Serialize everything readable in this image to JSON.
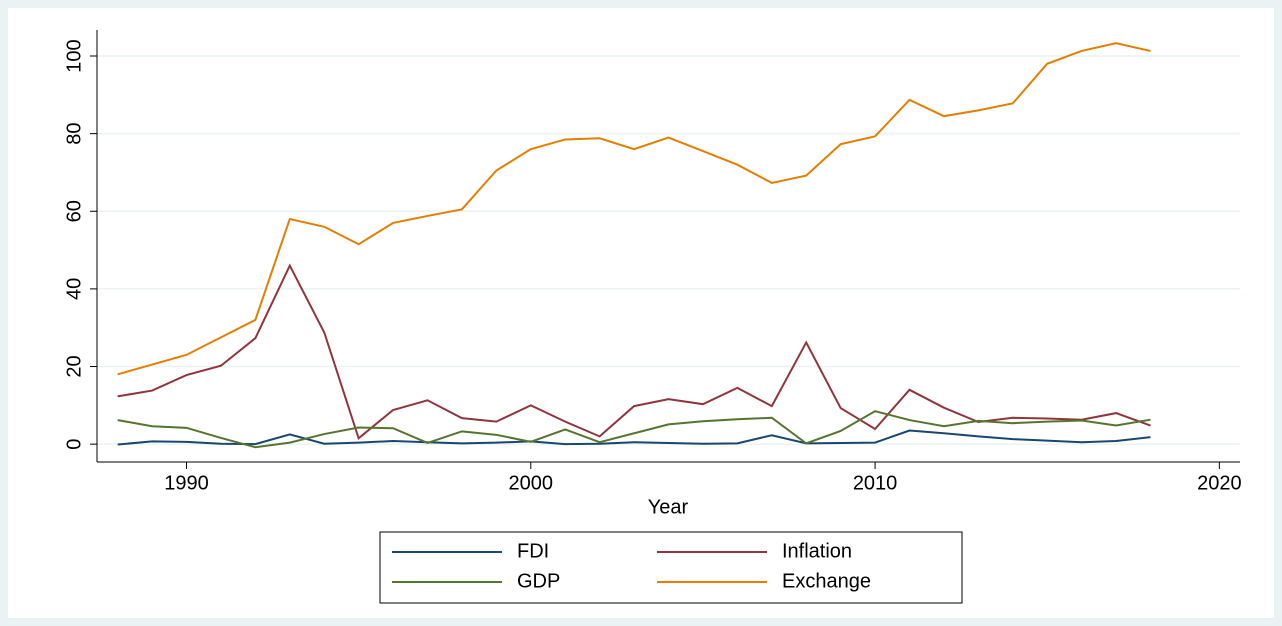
{
  "chart_data": {
    "type": "line",
    "xlabel": "Year",
    "x": [
      1988,
      1989,
      1990,
      1991,
      1992,
      1993,
      1994,
      1995,
      1996,
      1997,
      1998,
      1999,
      2000,
      2001,
      2002,
      2003,
      2004,
      2005,
      2006,
      2007,
      2008,
      2009,
      2010,
      2011,
      2012,
      2013,
      2014,
      2015,
      2016,
      2017,
      2018
    ],
    "series": [
      {
        "name": "FDI",
        "color": "#1a476f",
        "values": [
          -0.1,
          0.7,
          0.6,
          0.1,
          0,
          2.5,
          0.1,
          0.4,
          0.8,
          0.5,
          0.2,
          0.4,
          0.7,
          0,
          0.1,
          0.5,
          0.3,
          0.1,
          0.2,
          2.3,
          0.2,
          0.3,
          0.4,
          3.5,
          2.8,
          2,
          1.3,
          0.9,
          0.5,
          0.8,
          1.8
        ]
      },
      {
        "name": "Inflation",
        "color": "#90353b",
        "values": [
          12.3,
          13.8,
          17.8,
          20.2,
          27.3,
          46,
          28.8,
          1.5,
          8.8,
          11.3,
          6.7,
          5.8,
          10,
          5.8,
          2,
          9.8,
          11.6,
          10.3,
          14.5,
          9.8,
          26.2,
          9.3,
          3.9,
          14,
          9.4,
          5.7,
          6.8,
          6.6,
          6.3,
          8,
          4.8
        ]
      },
      {
        "name": "GDP",
        "color": "#55752f",
        "values": [
          6.2,
          4.6,
          4.2,
          1.6,
          -0.8,
          0.4,
          2.6,
          4.3,
          4.1,
          0.3,
          3.3,
          2.4,
          0.6,
          3.8,
          0.5,
          2.8,
          5.1,
          5.9,
          6.4,
          6.8,
          0.2,
          3.4,
          8.5,
          6.2,
          4.6,
          6,
          5.4,
          5.8,
          6.1,
          4.8,
          6.3
        ]
      },
      {
        "name": "Exchange",
        "color": "#e37e00",
        "values": [
          18,
          20.5,
          23,
          27.5,
          32,
          58,
          56,
          51.5,
          57,
          58.8,
          60.5,
          70.5,
          76,
          78.5,
          78.8,
          76,
          79,
          75.5,
          72,
          67.3,
          69.2,
          77.3,
          79.3,
          88.7,
          84.5,
          86,
          87.8,
          98,
          101.3,
          103.3,
          101.3
        ]
      }
    ],
    "xlim": [
      1987.4,
      2020.6
    ],
    "xticks": [
      1990,
      2000,
      2010,
      2020
    ],
    "ylim": [
      -4.6,
      106.7
    ],
    "yticks": [
      0,
      20,
      40,
      60,
      80,
      100
    ],
    "grid": true,
    "legend": "bottom"
  }
}
